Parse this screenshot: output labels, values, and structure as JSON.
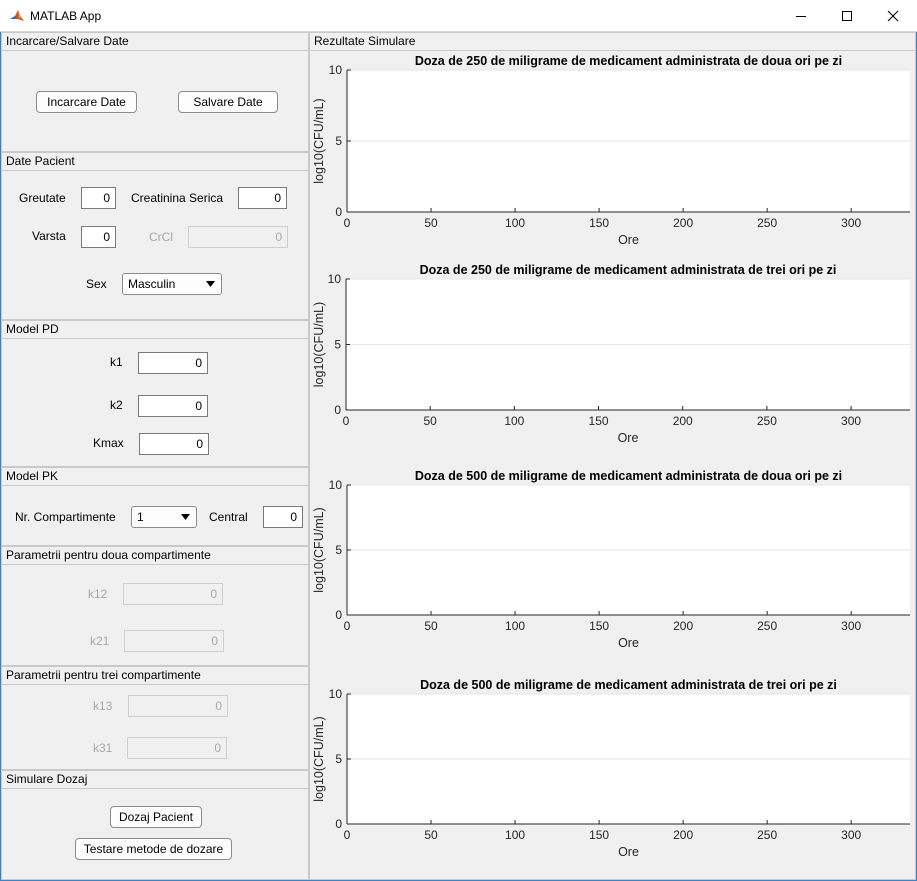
{
  "window": {
    "title": "MATLAB App"
  },
  "load_save": {
    "title": "Incarcare/Salvare Date",
    "load_label": "Incarcare Date",
    "save_label": "Salvare Date"
  },
  "patient": {
    "title": "Date Pacient",
    "weight_label": "Greutate",
    "weight_value": "0",
    "creatinine_label": "Creatinina Serica",
    "creatinine_value": "0",
    "age_label": "Varsta",
    "age_value": "0",
    "crcl_label": "CrCl",
    "crcl_value": "0",
    "sex_label": "Sex",
    "sex_value": "Masculin"
  },
  "pd_model": {
    "title": "Model PD",
    "k1_label": "k1",
    "k1_value": "0",
    "k2_label": "k2",
    "k2_value": "0",
    "kmax_label": "Kmax",
    "kmax_value": "0"
  },
  "pk_model": {
    "title": "Model PK",
    "compartments_label": "Nr. Compartimente",
    "compartments_value": "1",
    "central_label": "Central",
    "central_value": "0"
  },
  "two_comp": {
    "title": "Parametrii pentru doua compartimente",
    "k12_label": "k12",
    "k12_value": "0",
    "k21_label": "k21",
    "k21_value": "0"
  },
  "three_comp": {
    "title": "Parametrii pentru trei compartimente",
    "k13_label": "k13",
    "k13_value": "0",
    "k31_label": "k31",
    "k31_value": "0"
  },
  "dosing": {
    "title": "Simulare Dozaj",
    "patient_dosing_label": "Dozaj Pacient",
    "test_methods_label": "Testare metode de dozare"
  },
  "results": {
    "title": "Rezultate Simulare"
  },
  "chart_data": [
    {
      "type": "line",
      "title": "Doza de 250 de miligrame de medicament administrata de doua ori pe zi",
      "xlabel": "Ore",
      "ylabel": "log10(CFU/mL)",
      "xlim": [
        0,
        335
      ],
      "ylim": [
        0,
        10
      ],
      "xticks": [
        0,
        50,
        100,
        150,
        200,
        250,
        300
      ],
      "yticks": [
        0,
        5,
        10
      ],
      "grid": "y",
      "series": []
    },
    {
      "type": "line",
      "title": "Doza de 250 de miligrame de medicament administrata de trei ori pe zi",
      "xlabel": "Ore",
      "ylabel": "log10(CFU/mL)",
      "xlim": [
        0,
        335
      ],
      "ylim": [
        0,
        10
      ],
      "xticks": [
        0,
        50,
        100,
        150,
        200,
        250,
        300
      ],
      "yticks": [
        0,
        5,
        10
      ],
      "grid": "y",
      "series": []
    },
    {
      "type": "line",
      "title": "Doza de 500 de miligrame de medicament administrata de doua ori pe zi",
      "xlabel": "Ore",
      "ylabel": "log10(CFU/mL)",
      "xlim": [
        0,
        335
      ],
      "ylim": [
        0,
        10
      ],
      "xticks": [
        0,
        50,
        100,
        150,
        200,
        250,
        300
      ],
      "yticks": [
        0,
        5,
        10
      ],
      "grid": "y",
      "series": []
    },
    {
      "type": "line",
      "title": "Doza de 500 de miligrame de medicament administrata de trei ori pe zi",
      "xlabel": "Ore",
      "ylabel": "log10(CFU/mL)",
      "xlim": [
        0,
        335
      ],
      "ylim": [
        0,
        10
      ],
      "xticks": [
        0,
        50,
        100,
        150,
        200,
        250,
        300
      ],
      "yticks": [
        0,
        5,
        10
      ],
      "grid": "y",
      "series": []
    }
  ]
}
